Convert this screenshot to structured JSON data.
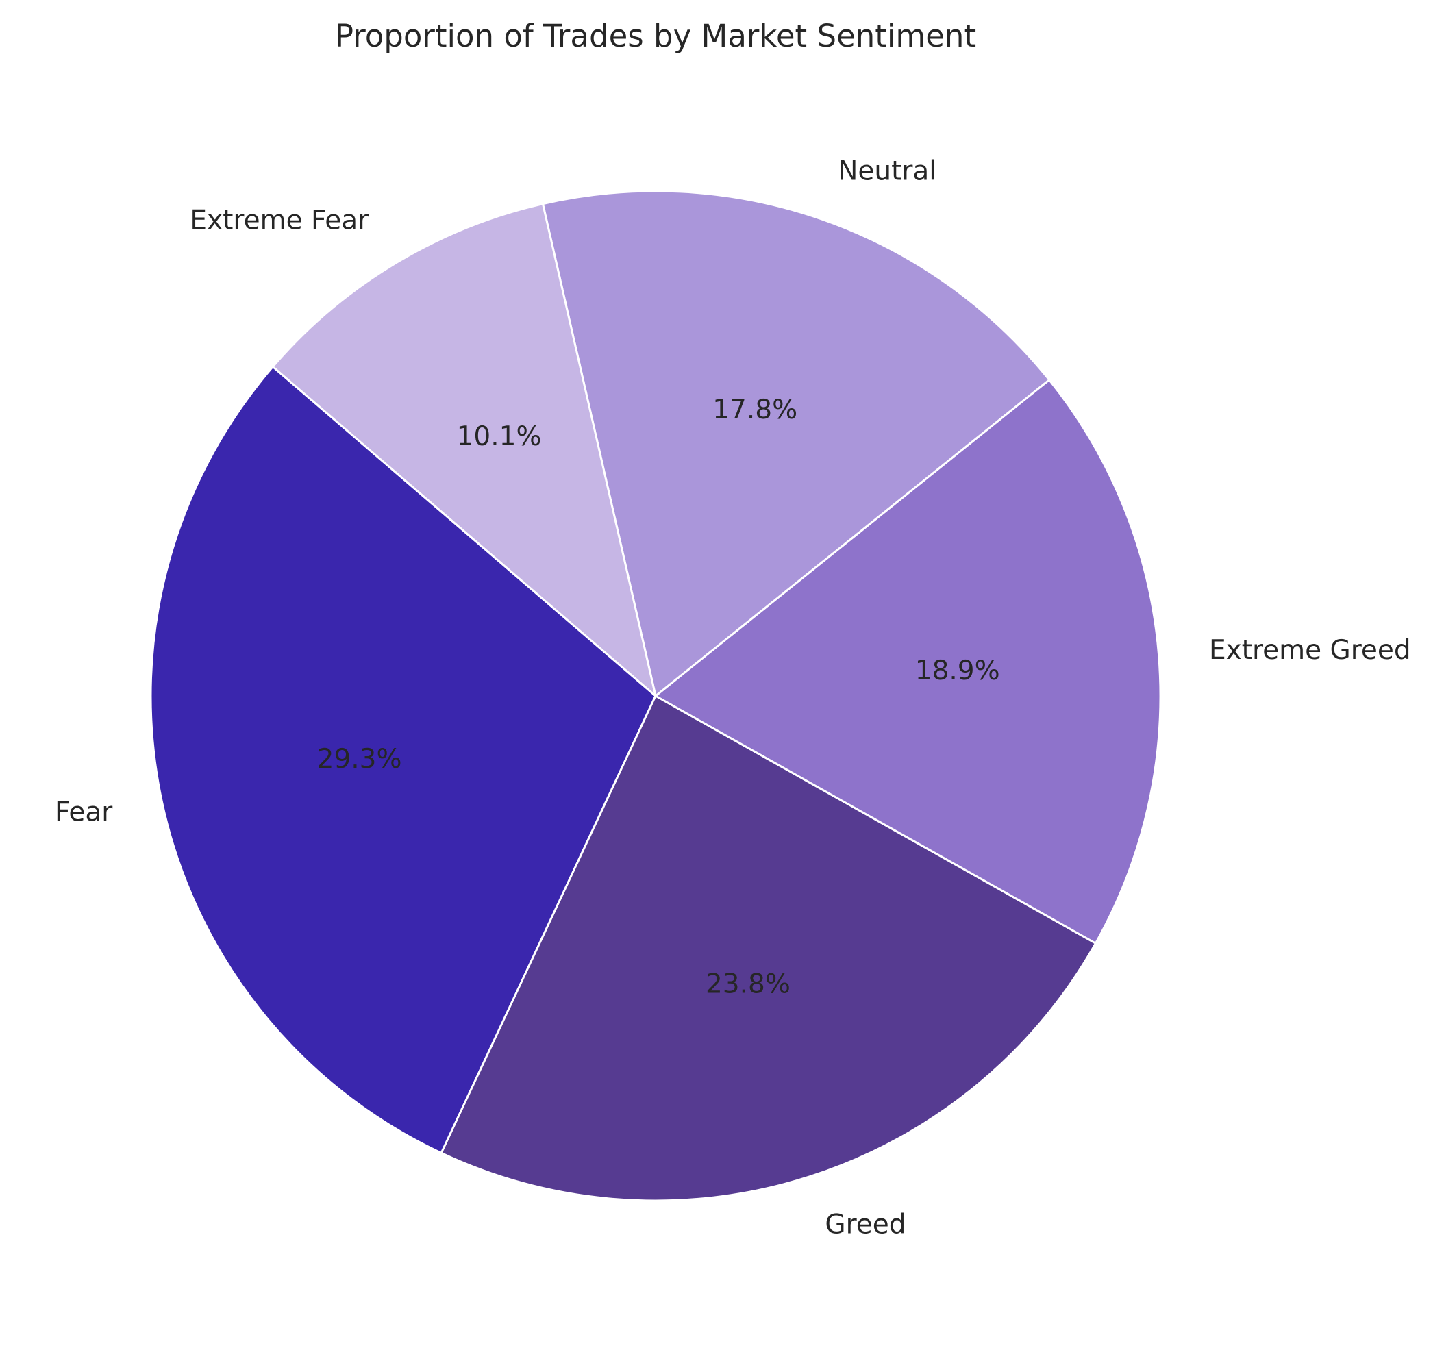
{
  "chart_data": {
    "type": "pie",
    "title": "Proportion of Trades by Market Sentiment",
    "start_angle_deg": 139.3,
    "direction": "counterclockwise",
    "slices": [
      {
        "label": "Fear",
        "value": 29.3,
        "pct_label": "29.3%",
        "color": "#3a26ad"
      },
      {
        "label": "Greed",
        "value": 23.8,
        "pct_label": "23.8%",
        "color": "#563b91"
      },
      {
        "label": "Extreme Greed",
        "value": 18.9,
        "pct_label": "18.9%",
        "color": "#8e73cb"
      },
      {
        "label": "Neutral",
        "value": 17.8,
        "pct_label": "17.8%",
        "color": "#aa96da"
      },
      {
        "label": "Extreme Fear",
        "value": 10.1,
        "pct_label": "10.1%",
        "color": "#c6b6e5"
      }
    ],
    "edge_color": "#ffffff"
  }
}
